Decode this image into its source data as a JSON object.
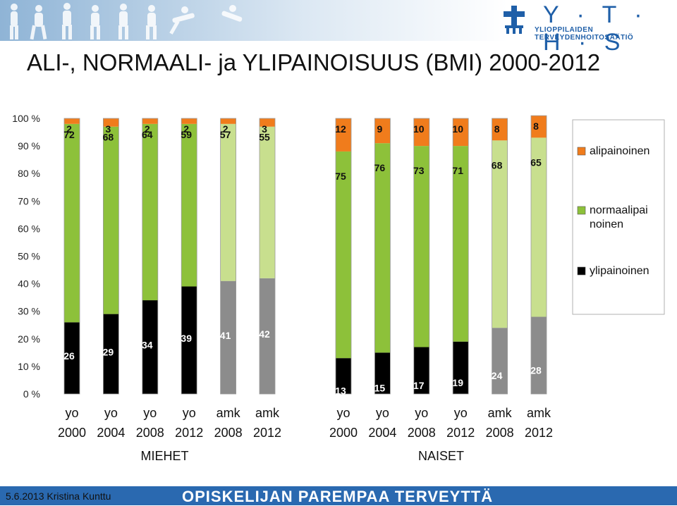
{
  "page": {
    "title": "ALI-, NORMAALI- ja YLIPAINOISUUS (BMI) 2000-2012",
    "logo_text": "Y · T · H · S",
    "logo_subtitle": "YLIOPPILAIDEN TERVEYDENHOITOSÄÄTIÖ",
    "footer_left": "5.6.2013 Kristina Kunttu",
    "footer_right": "OPISKELIJAN PAREMPAA TERVEYTTÄ"
  },
  "chart_data": {
    "type": "bar",
    "stacked": true,
    "percent": true,
    "title": "",
    "xlabel": "",
    "ylabel": "",
    "ylim": [
      0,
      100
    ],
    "yticks": [
      "0 %",
      "10 %",
      "20 %",
      "30 %",
      "40 %",
      "50 %",
      "60 %",
      "70 %",
      "80 %",
      "90 %",
      "100 %"
    ],
    "legend_position": "right",
    "legend": [
      {
        "name": "alipainoinen",
        "color": "#f07c1c"
      },
      {
        "name": "normaalipai noinen",
        "color": "#8dc13a"
      },
      {
        "name": "ylipainoinen",
        "color": "#000000"
      }
    ],
    "groups": [
      {
        "label": "MIEHET",
        "bars": [
          {
            "cat": "yo",
            "year": "2000",
            "ylipainoinen": 26,
            "normaalipainoinen": 72,
            "alipainoinen": 2
          },
          {
            "cat": "yo",
            "year": "2004",
            "ylipainoinen": 29,
            "normaalipainoinen": 68,
            "alipainoinen": 3
          },
          {
            "cat": "yo",
            "year": "2008",
            "ylipainoinen": 34,
            "normaalipainoinen": 64,
            "alipainoinen": 2
          },
          {
            "cat": "yo",
            "year": "2012",
            "ylipainoinen": 39,
            "normaalipainoinen": 59,
            "alipainoinen": 2
          },
          {
            "cat": "amk",
            "year": "2008",
            "ylipainoinen": 41,
            "normaalipainoinen": 57,
            "alipainoinen": 2
          },
          {
            "cat": "amk",
            "year": "2012",
            "ylipainoinen": 42,
            "normaalipainoinen": 55,
            "alipainoinen": 3
          }
        ]
      },
      {
        "label": "NAISET",
        "bars": [
          {
            "cat": "yo",
            "year": "2000",
            "ylipainoinen": 13,
            "normaalipainoinen": 75,
            "alipainoinen": 12
          },
          {
            "cat": "yo",
            "year": "2004",
            "ylipainoinen": 15,
            "normaalipainoinen": 76,
            "alipainoinen": 9
          },
          {
            "cat": "yo",
            "year": "2008",
            "ylipainoinen": 17,
            "normaalipainoinen": 73,
            "alipainoinen": 10
          },
          {
            "cat": "yo",
            "year": "2012",
            "ylipainoinen": 19,
            "normaalipainoinen": 71,
            "alipainoinen": 10
          },
          {
            "cat": "amk",
            "year": "2008",
            "ylipainoinen": 24,
            "normaalipainoinen": 68,
            "alipainoinen": 8
          },
          {
            "cat": "amk",
            "year": "2012",
            "ylipainoinen": 28,
            "normaalipainoinen": 65,
            "alipainoinen": 8
          }
        ]
      }
    ],
    "colors": {
      "yo_ylipainoinen": "#000000",
      "yo_normaalipainoinen": "#8dc13a",
      "amk_ylipainoinen": "#8c8c8c",
      "amk_normaalipainoinen": "#c8df8e",
      "alipainoinen": "#f07c1c",
      "bar_outline": "#9a9a9a"
    }
  }
}
